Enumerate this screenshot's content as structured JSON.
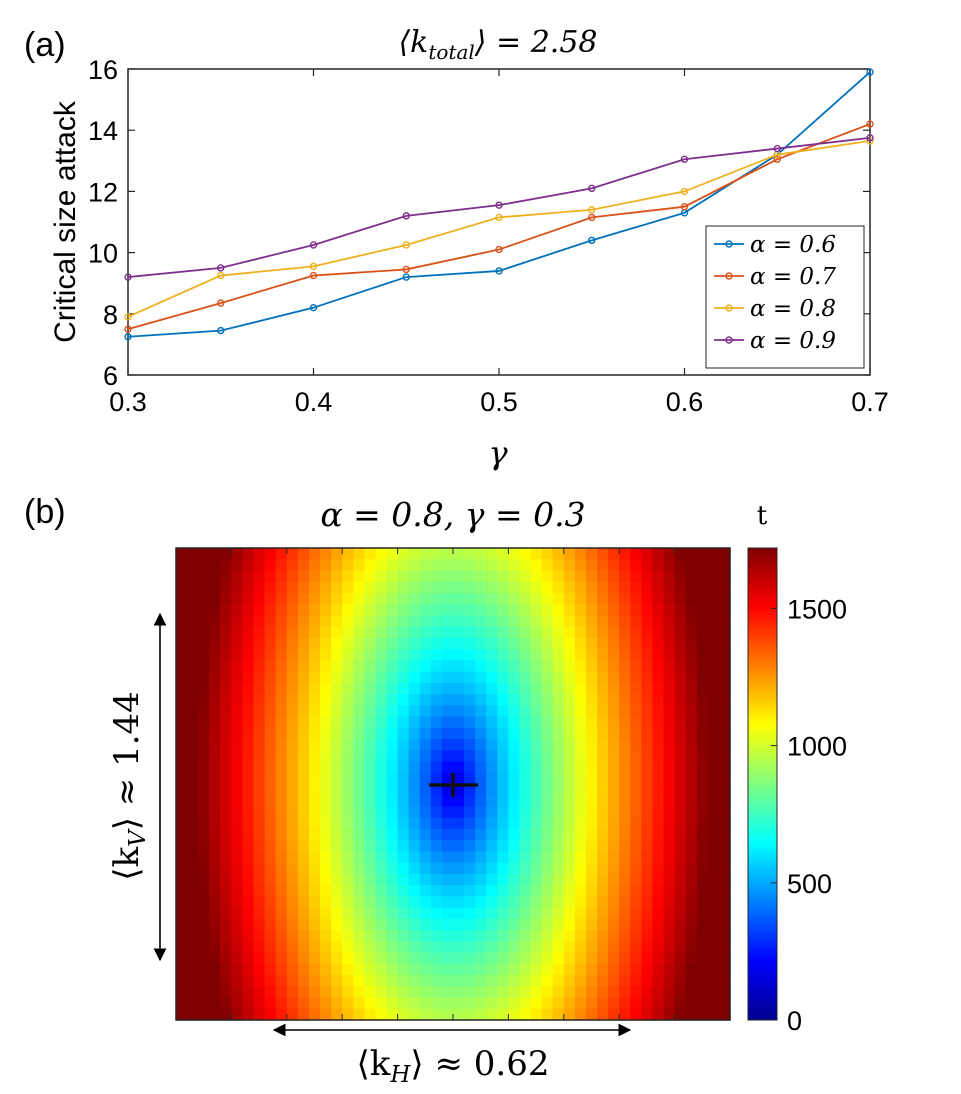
{
  "chart_data": [
    {
      "type": "line",
      "panel_label": "(a)",
      "title": "⟨k_total⟩ = 2.58",
      "title_main": "⟨k",
      "title_sub": "total",
      "title_tail": "⟩ = 2.58",
      "xlabel": "γ",
      "ylabel": "Critical size attack",
      "x": [
        0.3,
        0.35,
        0.4,
        0.45,
        0.5,
        0.55,
        0.6,
        0.65,
        0.7
      ],
      "xlim": [
        0.3,
        0.7
      ],
      "ylim": [
        6,
        16
      ],
      "xticks": [
        0.3,
        0.4,
        0.5,
        0.6,
        0.7
      ],
      "xtick_labels": [
        "0.3",
        "0.4",
        "0.5",
        "0.6",
        "0.7"
      ],
      "yticks": [
        6,
        8,
        10,
        12,
        14,
        16
      ],
      "ytick_labels": [
        "6",
        "8",
        "10",
        "12",
        "14",
        "16"
      ],
      "legend_position": "bottom-right",
      "series": [
        {
          "name": "α = 0.6",
          "color": "#0072BD",
          "values": [
            7.25,
            7.45,
            8.2,
            9.2,
            9.4,
            10.4,
            11.3,
            13.2,
            15.9
          ]
        },
        {
          "name": "α = 0.7",
          "color": "#D95319",
          "values": [
            7.5,
            8.35,
            9.25,
            9.45,
            10.1,
            11.15,
            11.5,
            13.05,
            14.2
          ]
        },
        {
          "name": "α = 0.8",
          "color": "#EDB120",
          "values": [
            7.9,
            9.25,
            9.55,
            10.25,
            11.15,
            11.4,
            12.0,
            13.2,
            13.65
          ]
        },
        {
          "name": "α = 0.9",
          "color": "#7E2F8E",
          "values": [
            9.2,
            9.5,
            10.25,
            11.2,
            11.55,
            12.1,
            13.05,
            13.4,
            13.75
          ]
        }
      ]
    },
    {
      "type": "heatmap",
      "panel_label": "(b)",
      "title": "α = 0.8, γ = 0.3",
      "colorbar_label": "t",
      "colorbar_ticks": [
        0,
        500,
        1000,
        1500
      ],
      "colorbar_tick_labels": [
        "0",
        "500",
        "1000",
        "1500"
      ],
      "value_range": [
        0,
        1720
      ],
      "colormap": "jet",
      "minimum_marker": "+",
      "vertical_annotation": "⟨k_V⟩ ≈ 1.44",
      "vertical_annotation_main": "⟨k",
      "vertical_annotation_sub": "V",
      "vertical_annotation_tail": "⟩ ≈ 1.44",
      "horizontal_annotation": "⟨k_H⟩ ≈ 0.62",
      "horizontal_annotation_main": "⟨k",
      "horizontal_annotation_sub": "H",
      "horizontal_annotation_tail": "⟩ ≈ 0.62"
    }
  ]
}
